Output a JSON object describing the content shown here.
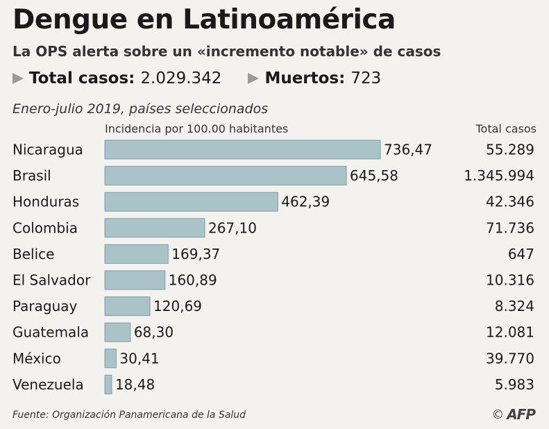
{
  "header": {
    "title": "Dengue en Latinoamérica",
    "subtitle": "La OPS alerta sobre un «incremento notable» de casos",
    "total_label": "Total casos:",
    "total_value": "2.029.342",
    "deaths_label": "Muertos:",
    "deaths_value": "723",
    "period": "Enero-julio 2019, países seleccionados"
  },
  "columns": {
    "incidence_header": "Incidencia por 100.00 habitantes",
    "cases_header": "Total casos"
  },
  "chart_data": {
    "type": "bar",
    "orientation": "horizontal",
    "categories": [
      "Nicaragua",
      "Brasil",
      "Honduras",
      "Colombia",
      "Belice",
      "El Salvador",
      "Paraguay",
      "Guatemala",
      "México",
      "Venezuela"
    ],
    "values": [
      736.47,
      645.58,
      462.39,
      267.1,
      169.37,
      160.89,
      120.69,
      68.3,
      30.41,
      18.48
    ],
    "value_labels": [
      "736,47",
      "645,58",
      "462,39",
      "267,10",
      "169,37",
      "160,89",
      "120,69",
      "68,30",
      "30,41",
      "18,48"
    ],
    "total_cases": [
      "55.289",
      "1.345.994",
      "42.346",
      "71.736",
      "647",
      "10.316",
      "8.324",
      "12.081",
      "39.770",
      "5.983"
    ],
    "xlabel": "Incidencia por 100.00 habitantes",
    "bar_color": "#a9c3c9",
    "bar_border": "#7f9ea5"
  },
  "footer": {
    "source": "Fuente: Organización Panamericana de la Salud",
    "copyright": "©",
    "agency": "AFP"
  }
}
